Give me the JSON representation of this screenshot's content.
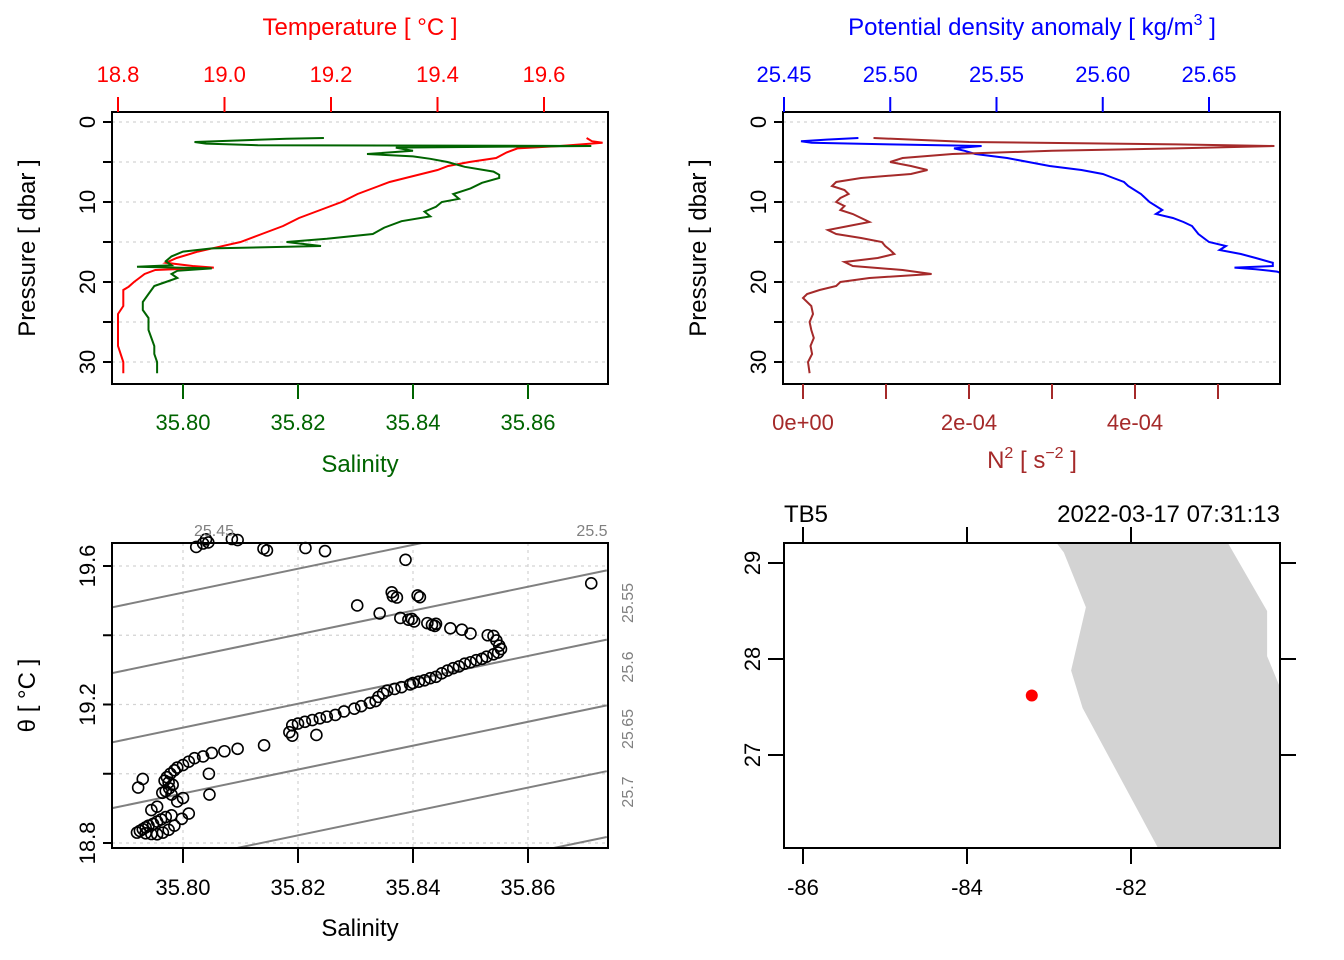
{
  "chart_data": [
    {
      "id": "profile_ts",
      "type": "line",
      "title": "",
      "ylabel": "Pressure [ dbar ]",
      "ylim": [
        0,
        32
      ],
      "y_reversed": true,
      "yticks": [
        0,
        5,
        10,
        15,
        20,
        25,
        30
      ],
      "ytick_labels": [
        "0",
        "",
        "10",
        "",
        "20",
        "",
        "30"
      ],
      "grid": "horizontal dotted",
      "top_axis": {
        "label": "Temperature [ °C ]",
        "color": "#ff0000",
        "lim": [
          18.79,
          19.72
        ],
        "ticks": [
          18.8,
          19.0,
          19.2,
          19.4,
          19.6
        ],
        "tick_labels": [
          "18.8",
          "19.0",
          "19.2",
          "19.4",
          "19.6"
        ]
      },
      "bottom_axis": {
        "label": "Salinity",
        "color": "#006400",
        "lim": [
          35.7875,
          35.8737
        ],
        "ticks": [
          35.8,
          35.82,
          35.84,
          35.86
        ],
        "tick_labels": [
          "35.80",
          "35.82",
          "35.84",
          "35.86"
        ]
      },
      "series": [
        {
          "name": "Temperature",
          "axis": "top",
          "color": "#ff0000",
          "pressure": [
            2.0,
            2.4,
            2.6,
            3.0,
            3.3,
            3.8,
            4.5,
            5.0,
            5.5,
            6.0,
            6.5,
            7.0,
            7.5,
            8.0,
            9.0,
            10.0,
            11.0,
            12.0,
            13.0,
            14.0,
            15.0,
            15.6,
            16.2,
            17.0,
            17.6,
            18.0,
            18.2,
            18.5,
            19.0,
            19.5,
            20.0,
            20.6,
            21.0,
            22.0,
            23.0,
            24.0,
            26.0,
            28.0,
            30.0,
            31.4
          ],
          "values": [
            19.68,
            19.69,
            19.71,
            19.63,
            19.55,
            19.53,
            19.51,
            19.46,
            19.42,
            19.4,
            19.37,
            19.34,
            19.31,
            19.29,
            19.25,
            19.22,
            19.18,
            19.14,
            19.11,
            19.07,
            19.03,
            18.99,
            18.95,
            18.91,
            18.89,
            18.94,
            18.98,
            18.87,
            18.85,
            18.84,
            18.83,
            18.82,
            18.81,
            18.81,
            18.81,
            18.8,
            18.8,
            18.8,
            18.81,
            18.81
          ]
        },
        {
          "name": "Salinity",
          "axis": "bottom",
          "color": "#006400",
          "pressure": [
            2.0,
            2.1,
            2.3,
            2.5,
            2.7,
            2.9,
            3.0,
            3.2,
            3.6,
            4.0,
            4.3,
            4.6,
            5.0,
            5.6,
            6.2,
            6.6,
            7.0,
            7.6,
            8.3,
            9.0,
            9.6,
            10.0,
            10.6,
            11.2,
            11.8,
            12.4,
            13.2,
            14.0,
            14.6,
            15.0,
            15.5,
            15.8,
            16.2,
            16.8,
            17.4,
            17.9,
            18.1,
            18.3,
            18.6,
            19.0,
            19.5,
            20.0,
            20.5,
            21.5,
            22.5,
            23.5,
            24.5,
            26.0,
            27.0,
            28.0,
            29.0,
            30.0,
            31.0,
            31.4
          ],
          "values": [
            35.8245,
            35.818,
            35.81,
            35.802,
            35.804,
            35.813,
            35.871,
            35.837,
            35.84,
            35.832,
            35.84,
            35.843,
            35.846,
            35.849,
            35.854,
            35.855,
            35.855,
            35.852,
            35.85,
            35.847,
            35.848,
            35.845,
            35.844,
            35.842,
            35.843,
            35.838,
            35.835,
            35.833,
            35.825,
            35.818,
            35.824,
            35.805,
            35.8,
            35.798,
            35.797,
            35.798,
            35.792,
            35.805,
            35.799,
            35.798,
            35.799,
            35.797,
            35.795,
            35.794,
            35.793,
            35.793,
            35.794,
            35.794,
            35.7945,
            35.795,
            35.795,
            35.7955,
            35.7955,
            35.7955
          ]
        }
      ]
    },
    {
      "id": "profile_density_n2",
      "type": "line",
      "title": "",
      "ylabel": "Pressure [ dbar ]",
      "ylim": [
        0,
        32
      ],
      "y_reversed": true,
      "yticks": [
        0,
        5,
        10,
        15,
        20,
        25,
        30
      ],
      "ytick_labels": [
        "0",
        "",
        "10",
        "",
        "20",
        "",
        "30"
      ],
      "grid": "horizontal dotted",
      "top_axis": {
        "label": "Potential density anomaly [ kg/m",
        "label_sup": "3",
        "label_end": " ]",
        "color": "#0000ff",
        "lim": [
          25.4495,
          25.684
        ],
        "ticks": [
          25.45,
          25.5,
          25.55,
          25.6,
          25.65
        ],
        "tick_labels": [
          "25.45",
          "25.50",
          "25.55",
          "25.60",
          "25.65"
        ]
      },
      "bottom_axis": {
        "label": "N",
        "label_sup": "2",
        "label_mid": " [ s",
        "label_sup2": "−2",
        "label_end": " ]",
        "color": "#a52a2a",
        "lim": [
          -2.29e-05,
          0.0005747
        ],
        "ticks": [
          0,
          0.0001,
          0.0002,
          0.0003,
          0.0004,
          0.0005
        ],
        "tick_labels": [
          "0e+00",
          "",
          "2e-04",
          "",
          "4e-04",
          ""
        ]
      },
      "series": [
        {
          "name": "Potential density anomaly",
          "axis": "top",
          "color": "#0000ff",
          "pressure": [
            2.0,
            2.2,
            2.4,
            2.6,
            2.8,
            3.0,
            3.3,
            3.6,
            4.0,
            4.5,
            5.0,
            5.5,
            6.0,
            6.5,
            7.0,
            7.5,
            8.0,
            9.0,
            10.0,
            11.0,
            11.5,
            12.0,
            12.5,
            13.0,
            14.0,
            15.0,
            15.5,
            16.0,
            16.5,
            17.0,
            17.6,
            18.0,
            18.2,
            18.4,
            18.7,
            19.0,
            19.5,
            20.0,
            20.5,
            21.0,
            22.0,
            24.0,
            26.0,
            28.0,
            30.0,
            31.4
          ],
          "values": [
            25.485,
            25.47,
            25.458,
            25.463,
            25.5,
            25.543,
            25.53,
            25.535,
            25.54,
            25.555,
            25.565,
            25.575,
            25.59,
            25.6,
            25.605,
            25.61,
            25.612,
            25.618,
            25.622,
            25.628,
            25.625,
            25.633,
            25.638,
            25.642,
            25.645,
            25.65,
            25.658,
            25.655,
            25.665,
            25.672,
            25.68,
            25.68,
            25.662,
            25.672,
            25.682,
            25.685,
            25.69,
            25.692,
            25.695,
            25.697,
            25.697,
            25.697,
            25.698,
            25.698,
            25.699,
            25.699
          ]
        },
        {
          "name": "N2",
          "axis": "bottom",
          "color": "#a52a2a",
          "pressure": [
            2.0,
            2.5,
            2.8,
            3.0,
            3.3,
            3.6,
            4.0,
            4.5,
            5.0,
            5.5,
            6.0,
            6.5,
            7.0,
            7.5,
            8.0,
            8.5,
            9.0,
            9.5,
            10.0,
            10.5,
            11.0,
            11.5,
            12.0,
            12.5,
            13.0,
            13.5,
            14.0,
            14.5,
            15.0,
            15.5,
            16.0,
            16.5,
            17.0,
            17.5,
            18.0,
            18.5,
            19.0,
            19.5,
            20.0,
            20.5,
            21.0,
            21.5,
            22.0,
            23.0,
            24.0,
            25.0,
            26.0,
            27.0,
            28.0,
            29.0,
            30.0,
            31.4
          ],
          "values": [
            8.5e-05,
            0.0002,
            0.00045,
            0.000568,
            0.00045,
            0.0003,
            0.00018,
            0.00012,
            0.000105,
            0.00013,
            0.00015,
            0.00013,
            7e-05,
            4e-05,
            3.5e-05,
            5e-05,
            5.5e-05,
            4.5e-05,
            4e-05,
            5e-05,
            4.5e-05,
            6e-05,
            7e-05,
            8e-05,
            5.5e-05,
            3e-05,
            4e-05,
            7e-05,
            9.5e-05,
            9.9e-05,
            0.000105,
            0.00011,
            9e-05,
            5e-05,
            6e-05,
            0.00012,
            0.000155,
            8e-05,
            4.5e-05,
            4e-05,
            2e-05,
            5e-06,
            0.0,
            1e-05,
            1.2e-05,
            8e-06,
            1e-05,
            1.3e-05,
            9e-06,
            1.1e-05,
            6e-06,
            8e-06
          ]
        }
      ]
    },
    {
      "id": "ts_diagram",
      "type": "scatter",
      "title": "",
      "xlabel": "Salinity",
      "ylabel": "θ [ °C ]",
      "xlim": [
        35.7875,
        35.8737
      ],
      "ylim": [
        18.79,
        19.73
      ],
      "xticks": [
        35.8,
        35.82,
        35.84,
        35.86
      ],
      "xtick_labels": [
        "35.80",
        "35.82",
        "35.84",
        "35.86"
      ],
      "yticks": [
        18.8,
        19.0,
        19.2,
        19.4,
        19.6
      ],
      "ytick_labels": [
        "18.8",
        "",
        "19.2",
        "",
        "19.6"
      ],
      "grid": "dotted",
      "marker": "open-circle",
      "isopycnals": {
        "color": "#808080",
        "levels": [
          25.45,
          25.5,
          25.55,
          25.6,
          25.65,
          25.7,
          25.75
        ],
        "labels_top": [
          "25.45",
          "25.5"
        ],
        "labels_right": [
          "25.55",
          "25.6",
          "25.65",
          "25.7"
        ],
        "slope_degC_per_psu": 3.45,
        "intercepts_degC_at_S_35_7875": [
          19.67,
          19.48,
          19.29,
          19.09,
          18.9,
          18.71,
          18.52
        ]
      },
      "points": [
        [
          35.8023,
          19.655
        ],
        [
          35.8035,
          19.665
        ],
        [
          35.804,
          19.677
        ],
        [
          35.8044,
          19.668
        ],
        [
          35.8085,
          19.678
        ],
        [
          35.8095,
          19.675
        ],
        [
          35.814,
          19.65
        ],
        [
          35.8146,
          19.645
        ],
        [
          35.8213,
          19.652
        ],
        [
          35.8247,
          19.643
        ],
        [
          35.8387,
          19.618
        ],
        [
          35.871,
          19.55
        ],
        [
          35.8363,
          19.524
        ],
        [
          35.8365,
          19.513
        ],
        [
          35.8372,
          19.509
        ],
        [
          35.8408,
          19.515
        ],
        [
          35.8412,
          19.51
        ],
        [
          35.8303,
          19.486
        ],
        [
          35.8342,
          19.463
        ],
        [
          35.8378,
          19.45
        ],
        [
          35.8392,
          19.445
        ],
        [
          35.8398,
          19.447
        ],
        [
          35.8402,
          19.44
        ],
        [
          35.8425,
          19.435
        ],
        [
          35.8433,
          19.43
        ],
        [
          35.8438,
          19.427
        ],
        [
          35.844,
          19.433
        ],
        [
          35.8465,
          19.42
        ],
        [
          35.8485,
          19.416
        ],
        [
          35.85,
          19.405
        ],
        [
          35.853,
          19.4
        ],
        [
          35.854,
          19.398
        ],
        [
          35.8545,
          19.385
        ],
        [
          35.855,
          19.37
        ],
        [
          35.8553,
          19.36
        ],
        [
          35.8548,
          19.35
        ],
        [
          35.854,
          19.345
        ],
        [
          35.8528,
          19.338
        ],
        [
          35.852,
          19.332
        ],
        [
          35.851,
          19.328
        ],
        [
          35.85,
          19.322
        ],
        [
          35.849,
          19.318
        ],
        [
          35.848,
          19.31
        ],
        [
          35.847,
          19.305
        ],
        [
          35.846,
          19.298
        ],
        [
          35.845,
          19.29
        ],
        [
          35.844,
          19.28
        ],
        [
          35.843,
          19.276
        ],
        [
          35.842,
          19.27
        ],
        [
          35.841,
          19.266
        ],
        [
          35.84,
          19.262
        ],
        [
          35.8395,
          19.258
        ],
        [
          35.838,
          19.25
        ],
        [
          35.8368,
          19.245
        ],
        [
          35.8355,
          19.24
        ],
        [
          35.8348,
          19.232
        ],
        [
          35.834,
          19.222
        ],
        [
          35.8335,
          19.21
        ],
        [
          35.8325,
          19.205
        ],
        [
          35.831,
          19.195
        ],
        [
          35.8298,
          19.188
        ],
        [
          35.828,
          19.18
        ],
        [
          35.8265,
          19.17
        ],
        [
          35.825,
          19.165
        ],
        [
          35.8238,
          19.16
        ],
        [
          35.8225,
          19.155
        ],
        [
          35.8212,
          19.15
        ],
        [
          35.82,
          19.145
        ],
        [
          35.819,
          19.14
        ],
        [
          35.8185,
          19.12
        ],
        [
          35.819,
          19.11
        ],
        [
          35.8232,
          19.112
        ],
        [
          35.8141,
          19.082
        ],
        [
          35.8095,
          19.072
        ],
        [
          35.8072,
          19.065
        ],
        [
          35.805,
          19.06
        ],
        [
          35.8035,
          19.05
        ],
        [
          35.802,
          19.045
        ],
        [
          35.801,
          19.035
        ],
        [
          35.8,
          19.025
        ],
        [
          35.799,
          19.018
        ],
        [
          35.7985,
          19.01
        ],
        [
          35.7978,
          19.0
        ],
        [
          35.7972,
          18.99
        ],
        [
          35.7968,
          18.98
        ],
        [
          35.7975,
          18.975
        ],
        [
          35.7982,
          18.968
        ],
        [
          35.7976,
          18.958
        ],
        [
          35.797,
          18.95
        ],
        [
          35.7964,
          18.945
        ],
        [
          35.798,
          18.94
        ],
        [
          35.8045,
          19.0
        ],
        [
          35.8046,
          18.94
        ],
        [
          35.8,
          18.93
        ],
        [
          35.799,
          18.92
        ],
        [
          35.7955,
          18.905
        ],
        [
          35.7945,
          18.895
        ],
        [
          35.793,
          18.985
        ],
        [
          35.7922,
          18.96
        ],
        [
          35.798,
          18.88
        ],
        [
          35.797,
          18.875
        ],
        [
          35.7962,
          18.868
        ],
        [
          35.7955,
          18.862
        ],
        [
          35.7948,
          18.855
        ],
        [
          35.794,
          18.85
        ],
        [
          35.7935,
          18.845
        ],
        [
          35.793,
          18.84
        ],
        [
          35.7925,
          18.835
        ],
        [
          35.792,
          18.83
        ],
        [
          35.7935,
          18.828
        ],
        [
          35.7945,
          18.826
        ],
        [
          35.7955,
          18.825
        ],
        [
          35.7965,
          18.83
        ],
        [
          35.7975,
          18.838
        ],
        [
          35.7985,
          18.85
        ],
        [
          35.7998,
          18.87
        ],
        [
          35.801,
          18.885
        ]
      ]
    },
    {
      "id": "station_map",
      "type": "scatter",
      "title_left": "TB5",
      "title_right": "2022-03-17 07:31:13",
      "xlim": [
        -86.23,
        -80.18
      ],
      "ylim": [
        26.03,
        29.21
      ],
      "xticks": [
        -86,
        -84,
        -82
      ],
      "xtick_labels": [
        "-86",
        "-84",
        "-82"
      ],
      "yticks": [
        27,
        28,
        29
      ],
      "ytick_labels": [
        "27",
        "28",
        "29"
      ],
      "land_color": "#d3d3d3",
      "land_polygon": [
        [
          -82.91,
          29.21
        ],
        [
          -82.82,
          29.11
        ],
        [
          -82.55,
          28.54
        ],
        [
          -82.73,
          27.88
        ],
        [
          -82.59,
          27.49
        ],
        [
          -81.67,
          26.03
        ],
        [
          -80.18,
          26.03
        ],
        [
          -80.18,
          27.7
        ],
        [
          -80.34,
          28.03
        ],
        [
          -80.34,
          28.5
        ],
        [
          -80.82,
          29.21
        ]
      ],
      "station": {
        "lon": -83.21,
        "lat": 27.62,
        "color": "#ff0000"
      }
    }
  ]
}
